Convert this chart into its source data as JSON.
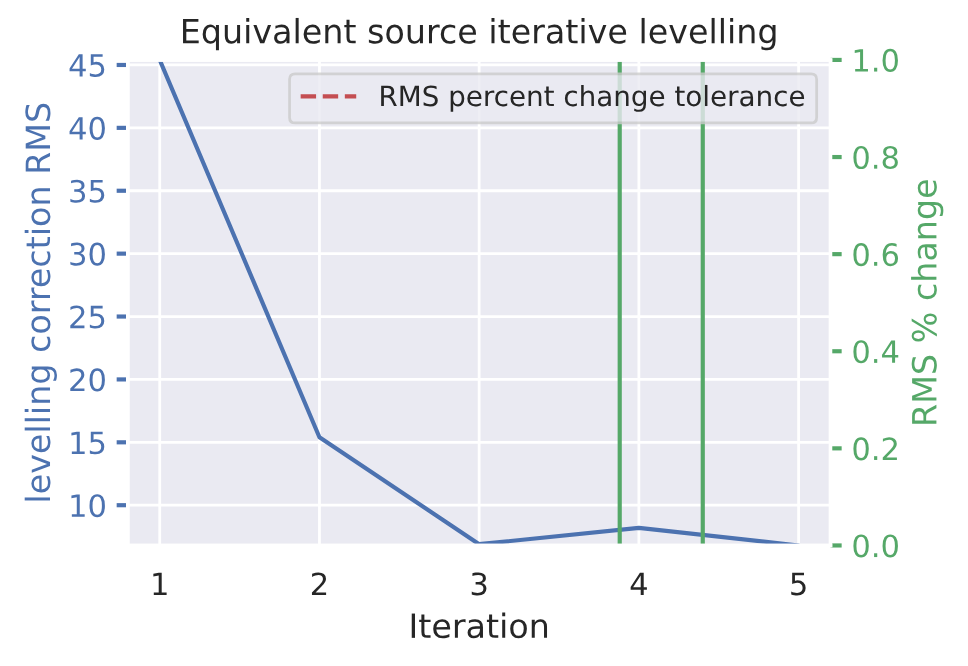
{
  "chart_data": {
    "type": "line",
    "title": "Equivalent source iterative levelling",
    "xlabel": "Iteration",
    "ylabel": "levelling correction RMS",
    "y2label": "RMS % change",
    "x": [
      1,
      2,
      3,
      4,
      5
    ],
    "series": [
      {
        "color": "#4c72b0",
        "values": [
          45.4,
          15.4,
          6.9,
          8.2,
          6.8
        ]
      },
      {
        "name": "RMS percent change tolerance",
        "color": "#c44e52",
        "line_style": "dashed",
        "values": [
          null,
          null,
          null,
          null,
          null
        ]
      }
    ],
    "ref_lines": [
      {
        "axis": "x",
        "value": 3.88,
        "color": "#55a868",
        "line_style": "solid"
      },
      {
        "axis": "x",
        "value": 4.4,
        "color": "#55a868",
        "line_style": "solid"
      }
    ],
    "xlim": [
      0.8,
      5.2
    ],
    "xticks": [
      1,
      2,
      3,
      4,
      5
    ],
    "ylim": [
      6.8,
      45.4
    ],
    "yticks": [
      10,
      15,
      20,
      25,
      30,
      35,
      40,
      45
    ],
    "y2lim": [
      0,
      1
    ],
    "y2ticks": [
      {
        "value": 0,
        "label": "0.0"
      },
      {
        "value": 0.2,
        "label": "0.2"
      },
      {
        "value": 0.4,
        "label": "0.4"
      },
      {
        "value": 0.6,
        "label": "0.6"
      },
      {
        "value": 0.8,
        "label": "0.8"
      },
      {
        "value": 1,
        "label": "1.0"
      }
    ],
    "grid": true,
    "legend": "top right"
  }
}
